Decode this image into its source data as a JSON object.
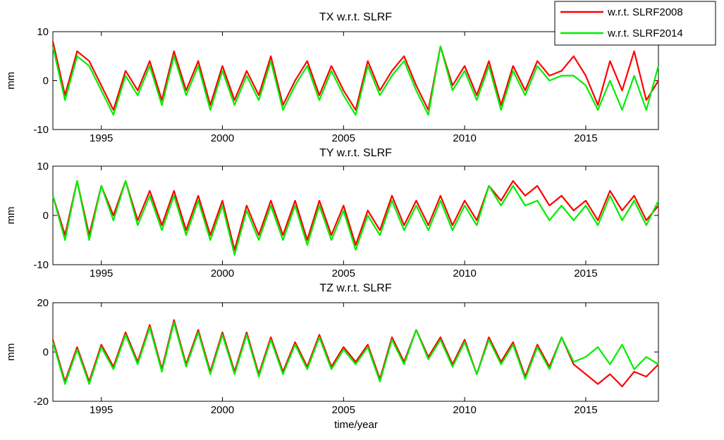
{
  "colors": {
    "SLRF2008": "#ff0000",
    "SLRF2014": "#00ee00"
  },
  "legend": {
    "placement": "top-right",
    "items": [
      {
        "label": "w.r.t. SLRF2008",
        "series_key": "SLRF2008"
      },
      {
        "label": "w.r.t. SLRF2014",
        "series_key": "SLRF2014"
      }
    ]
  },
  "xlabel": "time/year",
  "chart_data": [
    {
      "type": "line",
      "title": "TX w.r.t. SLRF",
      "ylabel": "mm",
      "xlim": [
        1993,
        2018
      ],
      "ylim": [
        -10,
        10
      ],
      "xticks": [
        1995,
        2000,
        2005,
        2010,
        2015
      ],
      "yticks": [
        -10,
        0,
        10
      ],
      "x": [
        1993.0,
        1993.5,
        1994.0,
        1994.5,
        1995.0,
        1995.5,
        1996.0,
        1996.5,
        1997.0,
        1997.5,
        1998.0,
        1998.5,
        1999.0,
        1999.5,
        2000.0,
        2000.5,
        2001.0,
        2001.5,
        2002.0,
        2002.5,
        2003.0,
        2003.5,
        2004.0,
        2004.5,
        2005.0,
        2005.5,
        2006.0,
        2006.5,
        2007.0,
        2007.5,
        2008.0,
        2008.5,
        2009.0,
        2009.5,
        2010.0,
        2010.5,
        2011.0,
        2011.5,
        2012.0,
        2012.5,
        2013.0,
        2013.5,
        2014.0,
        2014.5,
        2015.0,
        2015.5,
        2016.0,
        2016.5,
        2017.0,
        2017.5,
        2018.0
      ],
      "series": [
        {
          "name": "w.r.t. SLRF2008",
          "values": [
            8,
            -3,
            6,
            4,
            -1,
            -6,
            2,
            -2,
            4,
            -4,
            6,
            -2,
            4,
            -5,
            3,
            -4,
            2,
            -3,
            5,
            -5,
            0,
            4,
            -3,
            3,
            -2,
            -6,
            4,
            -2,
            2,
            5,
            -1,
            -6,
            7,
            -1,
            3,
            -3,
            4,
            -5,
            3,
            -2,
            4,
            1,
            2,
            5,
            1,
            -5,
            4,
            -2,
            6,
            -4,
            0
          ]
        },
        {
          "name": "w.r.t. SLRF2014",
          "values": [
            7,
            -4,
            5,
            3,
            -2,
            -7,
            1,
            -3,
            3,
            -5,
            5,
            -3,
            3,
            -6,
            2,
            -5,
            1,
            -4,
            4,
            -6,
            -1,
            3,
            -4,
            2,
            -3,
            -7,
            3,
            -3,
            1,
            4,
            -2,
            -7,
            7,
            -2,
            2,
            -4,
            3,
            -6,
            2,
            -3,
            3,
            0,
            1,
            1,
            -1,
            -6,
            0,
            -6,
            1,
            -6,
            3
          ]
        }
      ]
    },
    {
      "type": "line",
      "title": "TY w.r.t. SLRF",
      "ylabel": "mm",
      "xlim": [
        1993,
        2018
      ],
      "ylim": [
        -10,
        10
      ],
      "xticks": [
        1995,
        2000,
        2005,
        2010,
        2015
      ],
      "yticks": [
        -10,
        0,
        10
      ],
      "x": [
        1993.0,
        1993.5,
        1994.0,
        1994.5,
        1995.0,
        1995.5,
        1996.0,
        1996.5,
        1997.0,
        1997.5,
        1998.0,
        1998.5,
        1999.0,
        1999.5,
        2000.0,
        2000.5,
        2001.0,
        2001.5,
        2002.0,
        2002.5,
        2003.0,
        2003.5,
        2004.0,
        2004.5,
        2005.0,
        2005.5,
        2006.0,
        2006.5,
        2007.0,
        2007.5,
        2008.0,
        2008.5,
        2009.0,
        2009.5,
        2010.0,
        2010.5,
        2011.0,
        2011.5,
        2012.0,
        2012.5,
        2013.0,
        2013.5,
        2014.0,
        2014.5,
        2015.0,
        2015.5,
        2016.0,
        2016.5,
        2017.0,
        2017.5,
        2018.0
      ],
      "series": [
        {
          "name": "w.r.t. SLRF2008",
          "values": [
            4,
            -4,
            7,
            -4,
            6,
            0,
            7,
            -1,
            5,
            -2,
            5,
            -3,
            4,
            -4,
            3,
            -7,
            2,
            -4,
            3,
            -4,
            3,
            -5,
            3,
            -4,
            2,
            -6,
            1,
            -3,
            4,
            -2,
            3,
            -2,
            4,
            -2,
            3,
            -1,
            6,
            3,
            7,
            4,
            6,
            2,
            4,
            1,
            3,
            -1,
            5,
            1,
            4,
            -1,
            2
          ]
        },
        {
          "name": "w.r.t. SLRF2014",
          "values": [
            4,
            -5,
            7,
            -5,
            6,
            -1,
            7,
            -2,
            4,
            -3,
            4,
            -4,
            3,
            -5,
            2,
            -8,
            1,
            -5,
            2,
            -5,
            2,
            -6,
            2,
            -5,
            1,
            -7,
            0,
            -4,
            3,
            -3,
            2,
            -3,
            3,
            -3,
            2,
            -2,
            6,
            2,
            6,
            2,
            3,
            -1,
            2,
            -1,
            2,
            -2,
            4,
            -1,
            3,
            -2,
            3
          ]
        }
      ]
    },
    {
      "type": "line",
      "title": "TZ w.r.t. SLRF",
      "ylabel": "mm",
      "xlim": [
        1993,
        2018
      ],
      "ylim": [
        -20,
        20
      ],
      "xticks": [
        1995,
        2000,
        2005,
        2010,
        2015
      ],
      "yticks": [
        -20,
        0,
        20
      ],
      "x": [
        1993.0,
        1993.5,
        1994.0,
        1994.5,
        1995.0,
        1995.5,
        1996.0,
        1996.5,
        1997.0,
        1997.5,
        1998.0,
        1998.5,
        1999.0,
        1999.5,
        2000.0,
        2000.5,
        2001.0,
        2001.5,
        2002.0,
        2002.5,
        2003.0,
        2003.5,
        2004.0,
        2004.5,
        2005.0,
        2005.5,
        2006.0,
        2006.5,
        2007.0,
        2007.5,
        2008.0,
        2008.5,
        2009.0,
        2009.5,
        2010.0,
        2010.5,
        2011.0,
        2011.5,
        2012.0,
        2012.5,
        2013.0,
        2013.5,
        2014.0,
        2014.5,
        2015.0,
        2015.5,
        2016.0,
        2016.5,
        2017.0,
        2017.5,
        2018.0
      ],
      "series": [
        {
          "name": "w.r.t. SLRF2008",
          "values": [
            5,
            -12,
            2,
            -12,
            3,
            -6,
            8,
            -4,
            11,
            -7,
            13,
            -5,
            9,
            -8,
            8,
            -8,
            8,
            -9,
            6,
            -8,
            4,
            -6,
            7,
            -6,
            2,
            -4,
            3,
            -11,
            6,
            -4,
            9,
            -2,
            6,
            -5,
            5,
            -9,
            6,
            -4,
            4,
            -10,
            3,
            -6,
            6,
            -5,
            -9,
            -13,
            -9,
            -14,
            -8,
            -10,
            -5
          ]
        },
        {
          "name": "w.r.t. SLRF2014",
          "values": [
            4,
            -13,
            1,
            -13,
            2,
            -7,
            7,
            -5,
            10,
            -8,
            12,
            -6,
            8,
            -9,
            7,
            -9,
            7,
            -10,
            5,
            -9,
            3,
            -7,
            6,
            -7,
            1,
            -5,
            2,
            -12,
            5,
            -5,
            9,
            -3,
            5,
            -6,
            4,
            -9,
            5,
            -5,
            3,
            -11,
            2,
            -7,
            6,
            -4,
            -2,
            2,
            -5,
            3,
            -7,
            -2,
            -5
          ]
        }
      ]
    }
  ]
}
